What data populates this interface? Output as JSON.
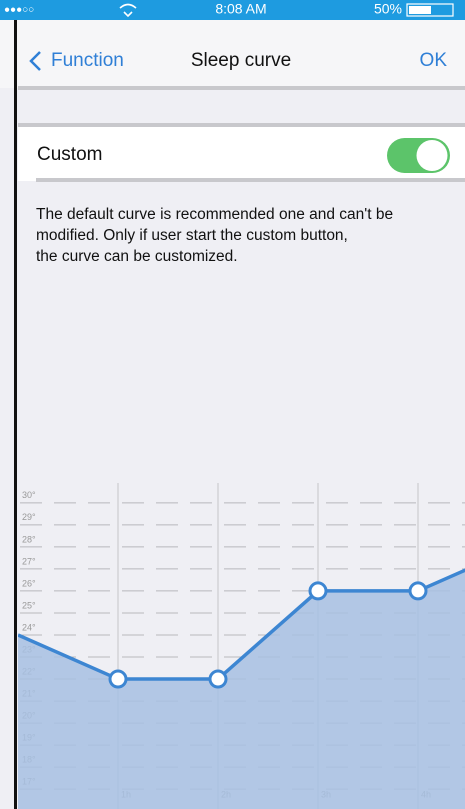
{
  "status_bar": {
    "carrier": "●●●○○",
    "time": "8:08 AM",
    "battery": "50%"
  },
  "nav": {
    "back": "Function",
    "title": "Sleep curve",
    "action": "OK"
  },
  "custom": {
    "label": "Custom",
    "enabled": true
  },
  "description": [
    "The default curve is recommended one and can't be",
    "modified. Only if user start the custom button,",
    "the curve can be customized."
  ],
  "chart_data": {
    "type": "line",
    "x": [
      0,
      1,
      2,
      3,
      4,
      5
    ],
    "values": [
      24,
      22,
      22,
      26,
      26,
      28
    ],
    "color": "#3d86d2",
    "fill": "#a7bfe2",
    "xlim": [
      0,
      4.47
    ],
    "xticks": [
      {
        "value": 1,
        "label": "1h"
      },
      {
        "value": 2,
        "label": "2h"
      },
      {
        "value": 3,
        "label": "3h"
      },
      {
        "value": 4,
        "label": "4h"
      }
    ],
    "ylim": [
      16.1,
      30.9
    ],
    "yticks": [
      {
        "value": 17,
        "label": "17°"
      },
      {
        "value": 18,
        "label": "18°"
      },
      {
        "value": 19,
        "label": "19°"
      },
      {
        "value": 20,
        "label": "20°"
      },
      {
        "value": 21,
        "label": "21°"
      },
      {
        "value": 22,
        "label": "22°"
      },
      {
        "value": 23,
        "label": "23°"
      },
      {
        "value": 24,
        "label": "24°"
      },
      {
        "value": 25,
        "label": "25°"
      },
      {
        "value": 26,
        "label": "26°"
      },
      {
        "value": 27,
        "label": "27°"
      },
      {
        "value": 28,
        "label": "28°"
      },
      {
        "value": 29,
        "label": "29°"
      },
      {
        "value": 30,
        "label": "30°"
      }
    ],
    "grid": true
  }
}
